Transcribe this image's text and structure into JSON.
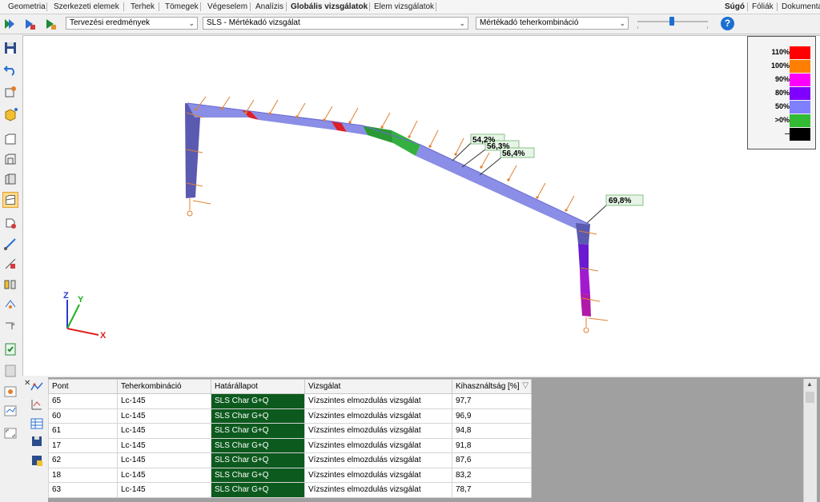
{
  "menu": {
    "tabs": [
      "Geometria",
      "Szerkezeti elemek",
      "Terhek",
      "Tömegek",
      "Végeselem",
      "Analízis",
      "Globális vizsgálatok",
      "Elem vizsgálatok"
    ],
    "active_tab": "Globális vizsgálatok",
    "right_tabs": [
      "Súgó",
      "Fóliák",
      "Dokumentá"
    ]
  },
  "toolbar": {
    "result_type": "Tervezési eredmények",
    "check": "SLS - Mértékadó vizsgálat",
    "combination": "Mértékadó teherkombináció",
    "help_label": "?"
  },
  "legend": {
    "items": [
      {
        "label": "110%",
        "color": "#ff0000"
      },
      {
        "label": "100%",
        "color": "#ff8000"
      },
      {
        "label": "90%",
        "color": "#ff00ff"
      },
      {
        "label": "80%",
        "color": "#8000ff"
      },
      {
        "label": "50%",
        "color": "#8080ff"
      },
      {
        "label": ">0%",
        "color": "#33bb33"
      },
      {
        "label": "--",
        "color": "#000000"
      }
    ]
  },
  "annotations": [
    "54,2%",
    "56,3%",
    "56,4%",
    "69,8%"
  ],
  "axes": {
    "x": "X",
    "y": "Y",
    "z": "Z"
  },
  "table": {
    "columns": [
      "Pont",
      "Teherkombináció",
      "Határállapot",
      "Vizsgálat",
      "Kihasználtság [%]"
    ],
    "rows": [
      [
        "65",
        "Lc-145",
        "SLS Char G+Q",
        "Vízszintes elmozdulás vizsgálat",
        "97,7"
      ],
      [
        "60",
        "Lc-145",
        "SLS Char G+Q",
        "Vízszintes elmozdulás vizsgálat",
        "96,9"
      ],
      [
        "61",
        "Lc-145",
        "SLS Char G+Q",
        "Vízszintes elmozdulás vizsgálat",
        "94,8"
      ],
      [
        "17",
        "Lc-145",
        "SLS Char G+Q",
        "Vízszintes elmozdulás vizsgálat",
        "91,8"
      ],
      [
        "62",
        "Lc-145",
        "SLS Char G+Q",
        "Vízszintes elmozdulás vizsgálat",
        "87,6"
      ],
      [
        "18",
        "Lc-145",
        "SLS Char G+Q",
        "Vízszintes elmozdulás vizsgálat",
        "83,2"
      ],
      [
        "63",
        "Lc-145",
        "SLS Char G+Q",
        "Vízszintes elmozdulás vizsgálat",
        "78,7"
      ]
    ]
  }
}
